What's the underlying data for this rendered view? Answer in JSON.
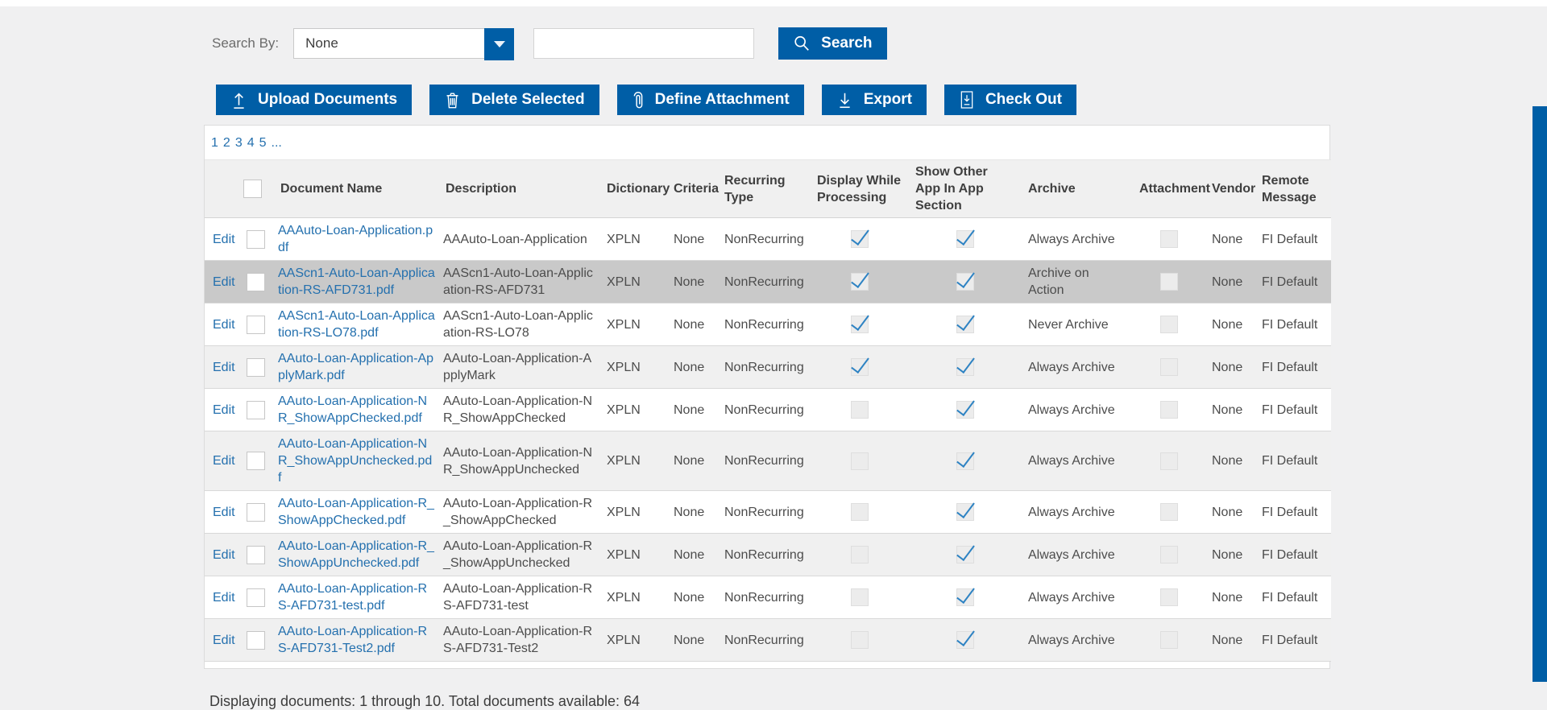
{
  "search": {
    "label": "Search By:",
    "dropdown_value": "None",
    "input_value": "",
    "button_label": "Search"
  },
  "toolbar": {
    "buttons": [
      {
        "label": "Upload Documents",
        "icon": "upload-icon"
      },
      {
        "label": "Delete Selected",
        "icon": "trash-icon"
      },
      {
        "label": "Define Attachment",
        "icon": "paperclip-icon"
      },
      {
        "label": "Export",
        "icon": "download-icon"
      },
      {
        "label": "Check Out",
        "icon": "checkout-document-icon"
      }
    ]
  },
  "pagination": {
    "pages": [
      "1",
      "2",
      "3",
      "4",
      "5",
      "..."
    ]
  },
  "table": {
    "edit_label": "Edit",
    "headers": {
      "document_name": "Document Name",
      "description": "Description",
      "dictionary": "Dictionary",
      "criteria": "Criteria",
      "recurring_type": "Recurring Type",
      "display_while_processing": "Display While Processing",
      "show_other_app": "Show Other App In App Section",
      "archive": "Archive",
      "attachment": "Attachment",
      "vendor": "Vendor",
      "remote_message": "Remote Message"
    },
    "rows": [
      {
        "document_name": "AAAuto-Loan-Application.pdf",
        "description": "AAAuto-Loan-Application",
        "dictionary": "XPLN",
        "criteria": "None",
        "recurring_type": "NonRecurring",
        "display_while_processing": true,
        "show_other_app": true,
        "archive": "Always Archive",
        "attachment": false,
        "vendor": "None",
        "remote_message": "FI Default",
        "selected": false
      },
      {
        "document_name": "AAScn1-Auto-Loan-Application-RS-AFD731.pdf",
        "description": "AAScn1-Auto-Loan-Application-RS-AFD731",
        "dictionary": "XPLN",
        "criteria": "None",
        "recurring_type": "NonRecurring",
        "display_while_processing": true,
        "show_other_app": true,
        "archive": "Archive on Action",
        "attachment": false,
        "vendor": "None",
        "remote_message": "FI Default",
        "selected": true
      },
      {
        "document_name": "AAScn1-Auto-Loan-Application-RS-LO78.pdf",
        "description": "AAScn1-Auto-Loan-Application-RS-LO78",
        "dictionary": "XPLN",
        "criteria": "None",
        "recurring_type": "NonRecurring",
        "display_while_processing": true,
        "show_other_app": true,
        "archive": "Never Archive",
        "attachment": false,
        "vendor": "None",
        "remote_message": "FI Default",
        "selected": false
      },
      {
        "document_name": "AAuto-Loan-Application-ApplyMark.pdf",
        "description": "AAuto-Loan-Application-ApplyMark",
        "dictionary": "XPLN",
        "criteria": "None",
        "recurring_type": "NonRecurring",
        "display_while_processing": true,
        "show_other_app": true,
        "archive": "Always Archive",
        "attachment": false,
        "vendor": "None",
        "remote_message": "FI Default",
        "selected": false
      },
      {
        "document_name": "AAuto-Loan-Application-NR_ShowAppChecked.pdf",
        "description": "AAuto-Loan-Application-NR_ShowAppChecked",
        "dictionary": "XPLN",
        "criteria": "None",
        "recurring_type": "NonRecurring",
        "display_while_processing": false,
        "show_other_app": true,
        "archive": "Always Archive",
        "attachment": false,
        "vendor": "None",
        "remote_message": "FI Default",
        "selected": false
      },
      {
        "document_name": "AAuto-Loan-Application-NR_ShowAppUnchecked.pdf",
        "description": "AAuto-Loan-Application-NR_ShowAppUnchecked",
        "dictionary": "XPLN",
        "criteria": "None",
        "recurring_type": "NonRecurring",
        "display_while_processing": false,
        "show_other_app": true,
        "archive": "Always Archive",
        "attachment": false,
        "vendor": "None",
        "remote_message": "FI Default",
        "selected": false
      },
      {
        "document_name": "AAuto-Loan-Application-R_ShowAppChecked.pdf",
        "description": "AAuto-Loan-Application-R_ShowAppChecked",
        "dictionary": "XPLN",
        "criteria": "None",
        "recurring_type": "NonRecurring",
        "display_while_processing": false,
        "show_other_app": true,
        "archive": "Always Archive",
        "attachment": false,
        "vendor": "None",
        "remote_message": "FI Default",
        "selected": false
      },
      {
        "document_name": "AAuto-Loan-Application-R_ShowAppUnchecked.pdf",
        "description": "AAuto-Loan-Application-R_ShowAppUnchecked",
        "dictionary": "XPLN",
        "criteria": "None",
        "recurring_type": "NonRecurring",
        "display_while_processing": false,
        "show_other_app": true,
        "archive": "Always Archive",
        "attachment": false,
        "vendor": "None",
        "remote_message": "FI Default",
        "selected": false
      },
      {
        "document_name": "AAuto-Loan-Application-RS-AFD731-test.pdf",
        "description": "AAuto-Loan-Application-RS-AFD731-test",
        "dictionary": "XPLN",
        "criteria": "None",
        "recurring_type": "NonRecurring",
        "display_while_processing": false,
        "show_other_app": true,
        "archive": "Always Archive",
        "attachment": false,
        "vendor": "None",
        "remote_message": "FI Default",
        "selected": false
      },
      {
        "document_name": "AAuto-Loan-Application-RS-AFD731-Test2.pdf",
        "description": "AAuto-Loan-Application-RS-AFD731-Test2",
        "dictionary": "XPLN",
        "criteria": "None",
        "recurring_type": "NonRecurring",
        "display_while_processing": false,
        "show_other_app": true,
        "archive": "Always Archive",
        "attachment": false,
        "vendor": "None",
        "remote_message": "FI Default",
        "selected": false
      }
    ]
  },
  "footer": {
    "summary": "Displaying documents: 1 through 10. Total documents available: 64"
  },
  "colors": {
    "primary_blue": "#005EA6",
    "link_blue": "#2470AE",
    "check_blue": "#2E83C3",
    "selected_row": "#C9C9C9"
  }
}
